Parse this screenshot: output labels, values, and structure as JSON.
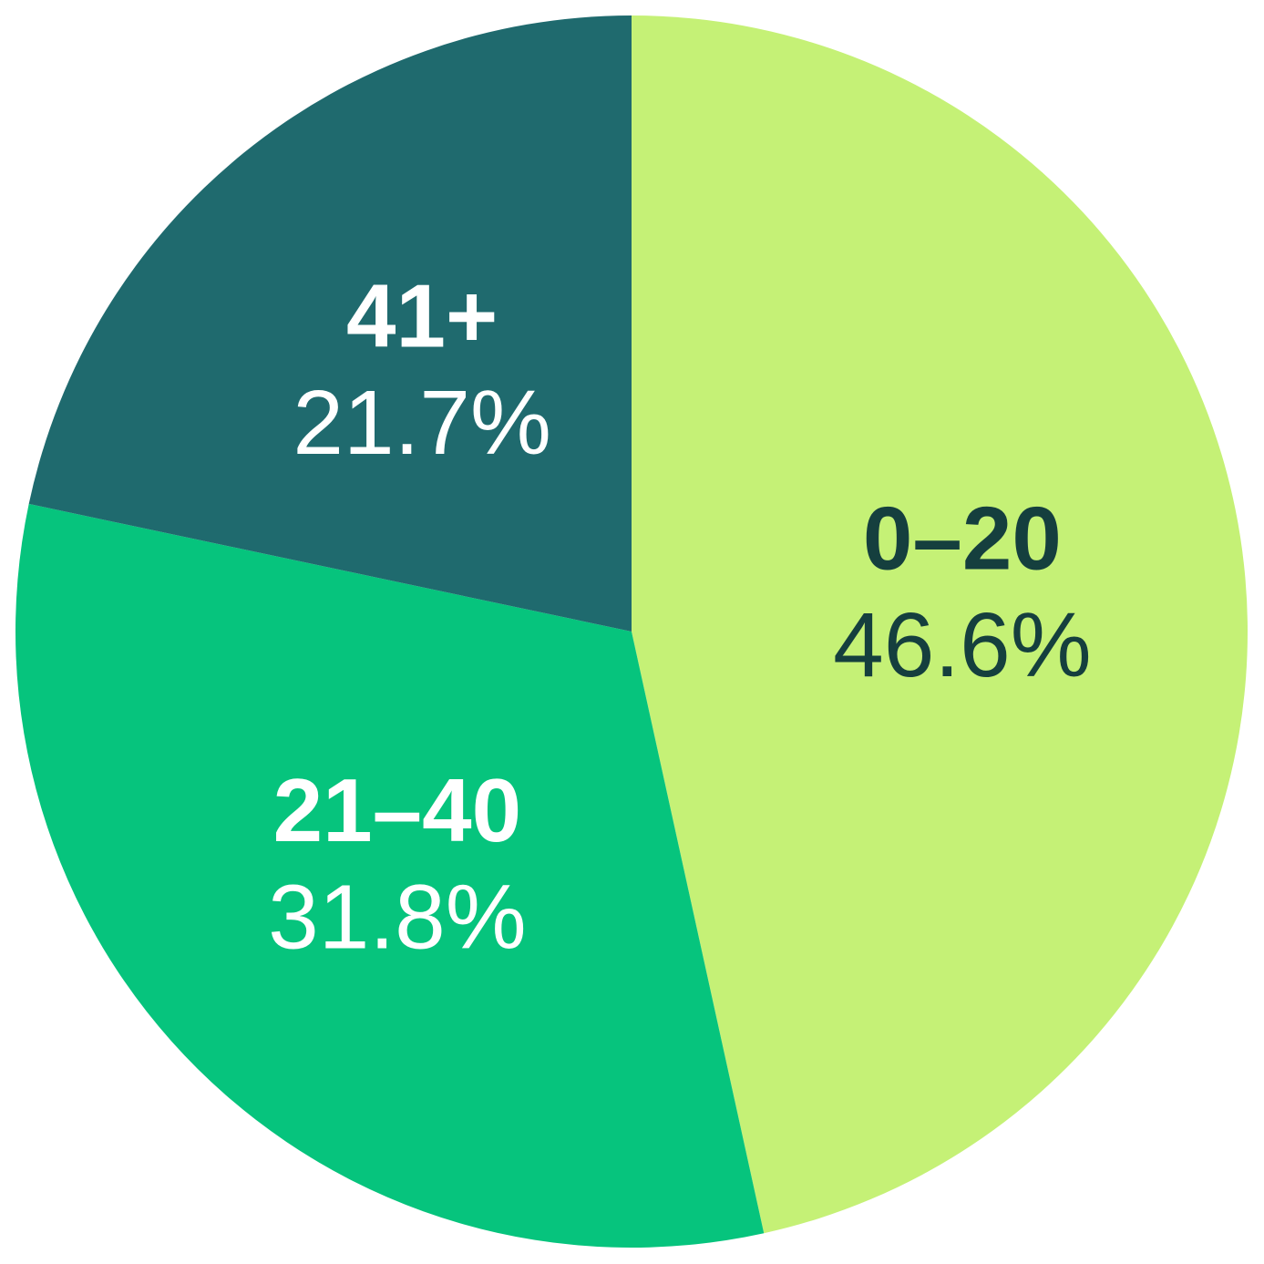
{
  "chart_data": {
    "type": "pie",
    "categories": [
      "0–20",
      "21–40",
      "41+"
    ],
    "values": [
      46.6,
      31.8,
      21.7
    ],
    "value_labels": [
      "46.6%",
      "31.8%",
      "21.7%"
    ],
    "colors": [
      "#c5f176",
      "#06c47d",
      "#1f6a6e"
    ],
    "label_colors": [
      "#153f3e",
      "#ffffff",
      "#ffffff"
    ]
  }
}
